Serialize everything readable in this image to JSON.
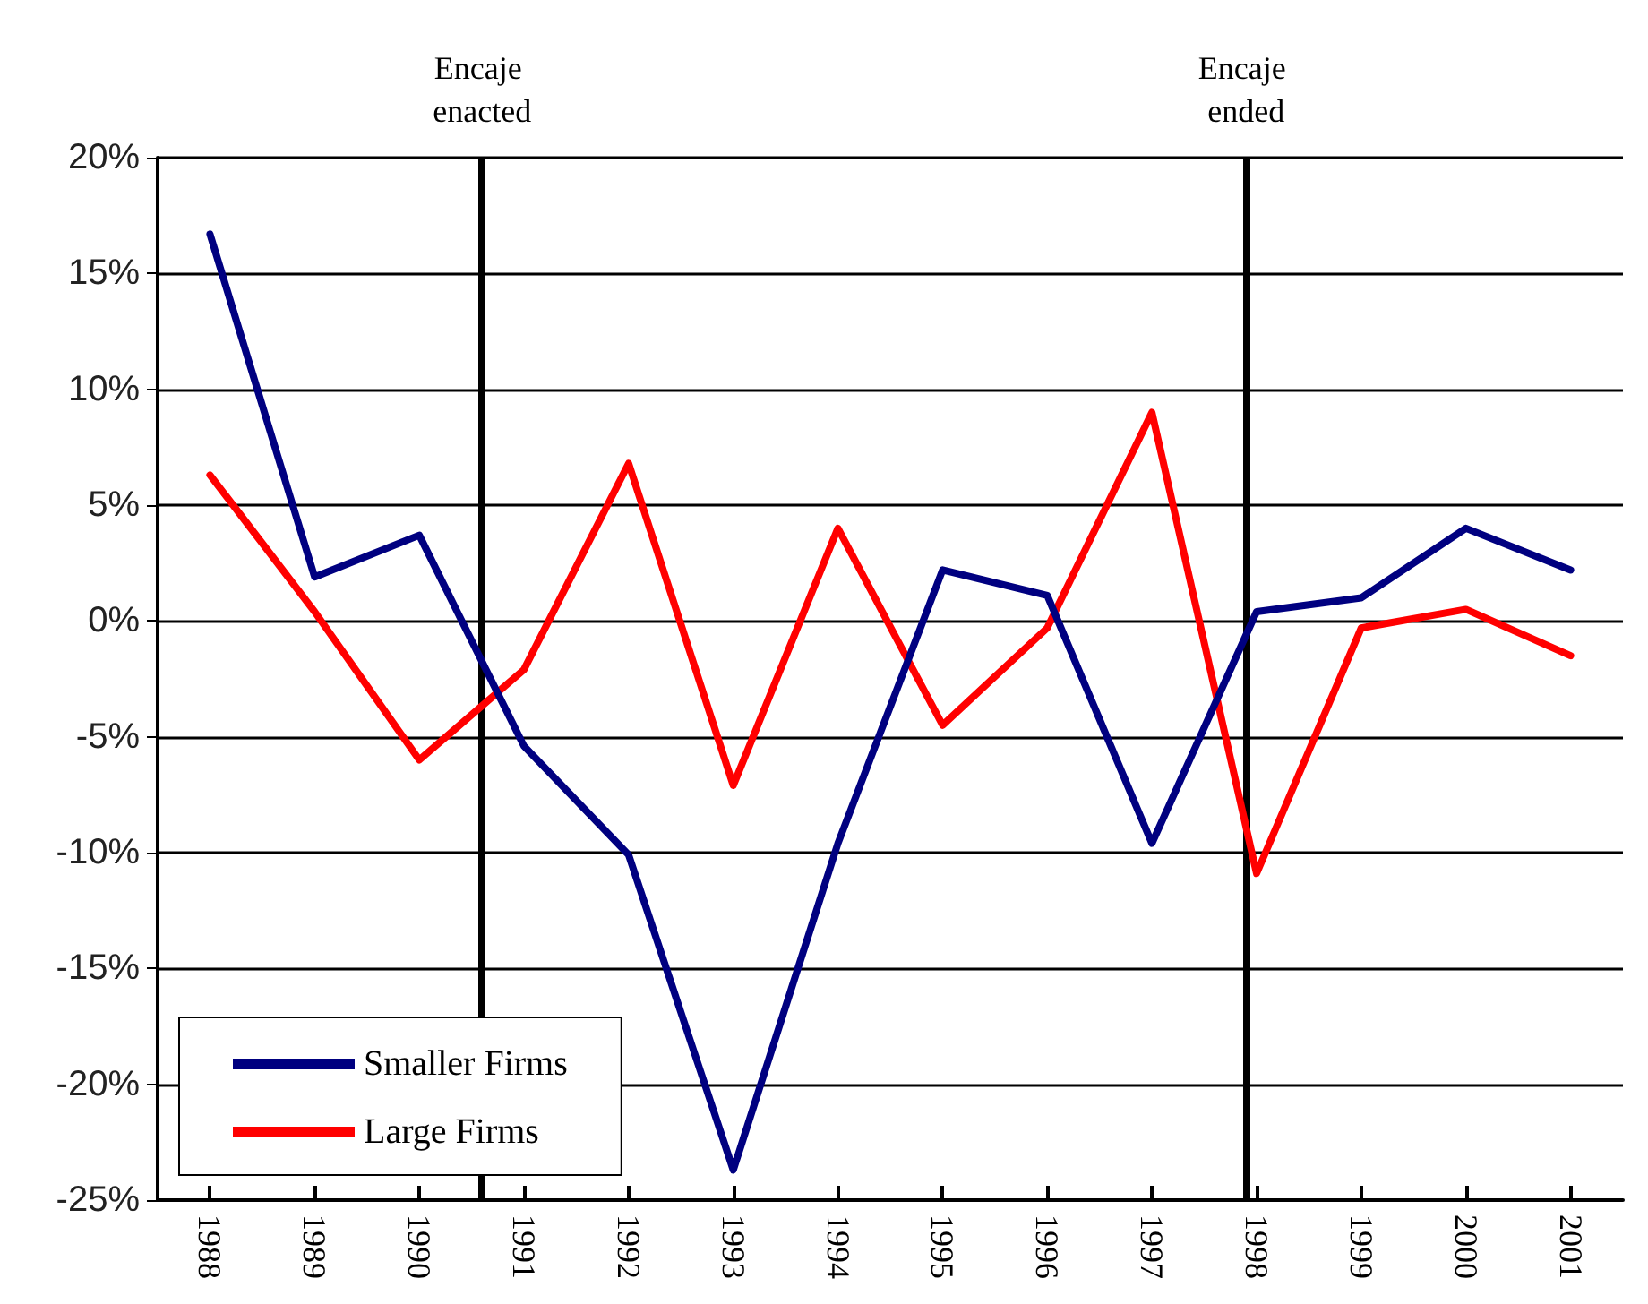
{
  "chart_data": {
    "type": "line",
    "x": [
      1988,
      1989,
      1990,
      1991,
      1992,
      1993,
      1994,
      1995,
      1996,
      1997,
      1998,
      1999,
      2000,
      2001
    ],
    "series": [
      {
        "name": "Smaller Firms",
        "color": "#000080",
        "values": [
          16.7,
          1.9,
          3.7,
          -5.4,
          -10.1,
          -23.7,
          -9.6,
          2.2,
          1.1,
          -9.6,
          0.4,
          1.0,
          4.0,
          2.2
        ]
      },
      {
        "name": "Large Firms",
        "color": "#ff0000",
        "values": [
          6.3,
          0.4,
          -6.0,
          -2.1,
          6.8,
          -7.1,
          4.0,
          -4.5,
          -0.3,
          9.0,
          -10.9,
          -0.3,
          0.5,
          -1.5
        ]
      }
    ],
    "xlim": [
      1987.5,
      2001.5
    ],
    "xticks": [
      1988,
      1989,
      1990,
      1991,
      1992,
      1993,
      1994,
      1995,
      1996,
      1997,
      1998,
      1999,
      2000,
      2001
    ],
    "ylim": [
      -25,
      20
    ],
    "yticks": [
      {
        "value": -25,
        "label": "-25%"
      },
      {
        "value": -20,
        "label": "-20%"
      },
      {
        "value": -15,
        "label": "-15%"
      },
      {
        "value": -10,
        "label": "-10%"
      },
      {
        "value": -5,
        "label": "-5%"
      },
      {
        "value": 0,
        "label": "0%"
      },
      {
        "value": 5,
        "label": "5%"
      },
      {
        "value": 10,
        "label": "10%"
      },
      {
        "value": 15,
        "label": "15%"
      },
      {
        "value": 20,
        "label": "20%"
      }
    ],
    "ref_lines": [
      {
        "axis": "x",
        "value": 1990.6,
        "label": "Encaje enacted",
        "color": "#000000"
      },
      {
        "axis": "x",
        "value": 1997.9,
        "label": "Encaje ended",
        "color": "#000000"
      }
    ],
    "grid": "y",
    "legend": "bottom left",
    "marker": "none",
    "line_style": "solid"
  }
}
